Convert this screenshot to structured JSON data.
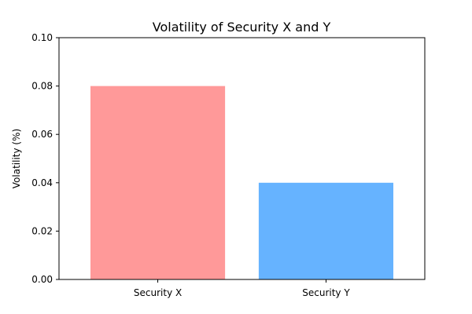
{
  "chart_data": {
    "type": "bar",
    "title": "Volatility of Security X and Y",
    "xlabel": "",
    "ylabel": "Volatility (%)",
    "categories": [
      "Security X",
      "Security Y"
    ],
    "values": [
      0.08,
      0.04
    ],
    "colors": [
      "#ff9999",
      "#66b3ff"
    ],
    "ylim": [
      0,
      0.1
    ],
    "yticks": [
      0.0,
      0.02,
      0.04,
      0.06,
      0.08,
      0.1
    ],
    "ytick_labels": [
      "0.00",
      "0.02",
      "0.04",
      "0.06",
      "0.08",
      "0.10"
    ],
    "grid": false,
    "legend": "none"
  }
}
